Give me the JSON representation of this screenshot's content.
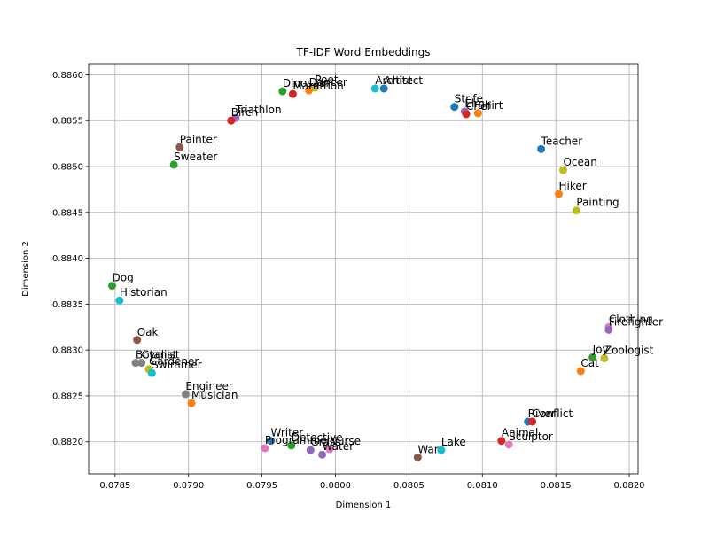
{
  "chart_data": {
    "type": "scatter",
    "title": "TF-IDF Word Embeddings",
    "xlabel": "Dimension 1",
    "ylabel": "Dimension 2",
    "xlim": [
      0.07832,
      0.08206
    ],
    "ylim": [
      0.88165,
      0.88612
    ],
    "xticks": [
      0.0785,
      0.079,
      0.0795,
      0.08,
      0.0805,
      0.081,
      0.0815,
      0.082
    ],
    "xtick_labels": [
      "0.0785",
      "0.0790",
      "0.0795",
      "0.0800",
      "0.0805",
      "0.0810",
      "0.0815",
      "0.0820"
    ],
    "yticks": [
      0.882,
      0.8825,
      0.883,
      0.8835,
      0.884,
      0.8845,
      0.885,
      0.8855,
      0.886
    ],
    "ytick_labels": [
      "0.8820",
      "0.8825",
      "0.8830",
      "0.8835",
      "0.8840",
      "0.8845",
      "0.8850",
      "0.8855",
      "0.8860"
    ],
    "grid": true,
    "points": [
      {
        "label": "Dog",
        "x": 0.07848,
        "y": 0.8837,
        "color": "#2ca02c"
      },
      {
        "label": "Historian",
        "x": 0.07853,
        "y": 0.88354,
        "color": "#17becf"
      },
      {
        "label": "Oak",
        "x": 0.07865,
        "y": 0.88311,
        "color": "#8c564b"
      },
      {
        "label": "Botanist",
        "x": 0.07864,
        "y": 0.88286,
        "color": "#7f7f7f"
      },
      {
        "label": "Cyclist",
        "x": 0.07868,
        "y": 0.88286,
        "color": "#7f7f7f"
      },
      {
        "label": "Gardener",
        "x": 0.07873,
        "y": 0.88279,
        "color": "#bcbd22"
      },
      {
        "label": "Swimmer",
        "x": 0.07875,
        "y": 0.88275,
        "color": "#17becf"
      },
      {
        "label": "Engineer",
        "x": 0.07898,
        "y": 0.88252,
        "color": "#7f7f7f"
      },
      {
        "label": "Musician",
        "x": 0.07902,
        "y": 0.88242,
        "color": "#ff7f0e"
      },
      {
        "label": "Painter",
        "x": 0.07894,
        "y": 0.88521,
        "color": "#8c564b"
      },
      {
        "label": "Sweater",
        "x": 0.0789,
        "y": 0.88502,
        "color": "#2ca02c"
      },
      {
        "label": "Triathlon",
        "x": 0.07932,
        "y": 0.88553,
        "color": "#9467bd"
      },
      {
        "label": "Birch",
        "x": 0.07929,
        "y": 0.8855,
        "color": "#d62728"
      },
      {
        "label": "Dinosaur",
        "x": 0.07964,
        "y": 0.88582,
        "color": "#2ca02c"
      },
      {
        "label": "Marathon",
        "x": 0.07971,
        "y": 0.88579,
        "color": "#d62728"
      },
      {
        "label": "Dancer",
        "x": 0.07982,
        "y": 0.88583,
        "color": "#ff7f0e"
      },
      {
        "label": "Poet",
        "x": 0.07986,
        "y": 0.88586,
        "color": "#bcbd22"
      },
      {
        "label": "Architect",
        "x": 0.08027,
        "y": 0.88585,
        "color": "#17becf"
      },
      {
        "label": "Artist",
        "x": 0.08033,
        "y": 0.88585,
        "color": "#1f77b4"
      },
      {
        "label": "Strife",
        "x": 0.08081,
        "y": 0.88565,
        "color": "#1f77b4"
      },
      {
        "label": "Elm",
        "x": 0.08088,
        "y": 0.8856,
        "color": "#9467bd"
      },
      {
        "label": "Chef",
        "x": 0.08089,
        "y": 0.88557,
        "color": "#d62728"
      },
      {
        "label": "Shirt",
        "x": 0.08097,
        "y": 0.88558,
        "color": "#ff7f0e"
      },
      {
        "label": "Teacher",
        "x": 0.0814,
        "y": 0.88519,
        "color": "#1f77b4"
      },
      {
        "label": "Ocean",
        "x": 0.08155,
        "y": 0.88496,
        "color": "#bcbd22"
      },
      {
        "label": "Hiker",
        "x": 0.08152,
        "y": 0.8847,
        "color": "#ff7f0e"
      },
      {
        "label": "Painting",
        "x": 0.08164,
        "y": 0.88452,
        "color": "#bcbd22"
      },
      {
        "label": "Clothing",
        "x": 0.08186,
        "y": 0.88325,
        "color": "#e377c2"
      },
      {
        "label": "Firefighter",
        "x": 0.08186,
        "y": 0.88322,
        "color": "#9467bd"
      },
      {
        "label": "Joy",
        "x": 0.08175,
        "y": 0.88292,
        "color": "#2ca02c"
      },
      {
        "label": "Zoologist",
        "x": 0.08183,
        "y": 0.88291,
        "color": "#bcbd22"
      },
      {
        "label": "Cat",
        "x": 0.08167,
        "y": 0.88277,
        "color": "#ff7f0e"
      },
      {
        "label": "River",
        "x": 0.08131,
        "y": 0.88222,
        "color": "#1f77b4"
      },
      {
        "label": "Conflict",
        "x": 0.08134,
        "y": 0.88222,
        "color": "#d62728"
      },
      {
        "label": "Animal",
        "x": 0.08113,
        "y": 0.88201,
        "color": "#d62728"
      },
      {
        "label": "Sculptor",
        "x": 0.08118,
        "y": 0.88197,
        "color": "#e377c2"
      },
      {
        "label": "Lake",
        "x": 0.08072,
        "y": 0.88191,
        "color": "#17becf"
      },
      {
        "label": "War",
        "x": 0.08056,
        "y": 0.88183,
        "color": "#8c564b"
      },
      {
        "label": "Writer",
        "x": 0.07956,
        "y": 0.88201,
        "color": "#1f77b4"
      },
      {
        "label": "Programmer",
        "x": 0.07952,
        "y": 0.88193,
        "color": "#e377c2"
      },
      {
        "label": "Detective",
        "x": 0.0797,
        "y": 0.88196,
        "color": "#2ca02c"
      },
      {
        "label": "Grass",
        "x": 0.07983,
        "y": 0.88191,
        "color": "#9467bd"
      },
      {
        "label": "Nurse",
        "x": 0.07996,
        "y": 0.88192,
        "color": "#e377c2"
      },
      {
        "label": "Water",
        "x": 0.07991,
        "y": 0.88186,
        "color": "#9467bd"
      }
    ]
  }
}
